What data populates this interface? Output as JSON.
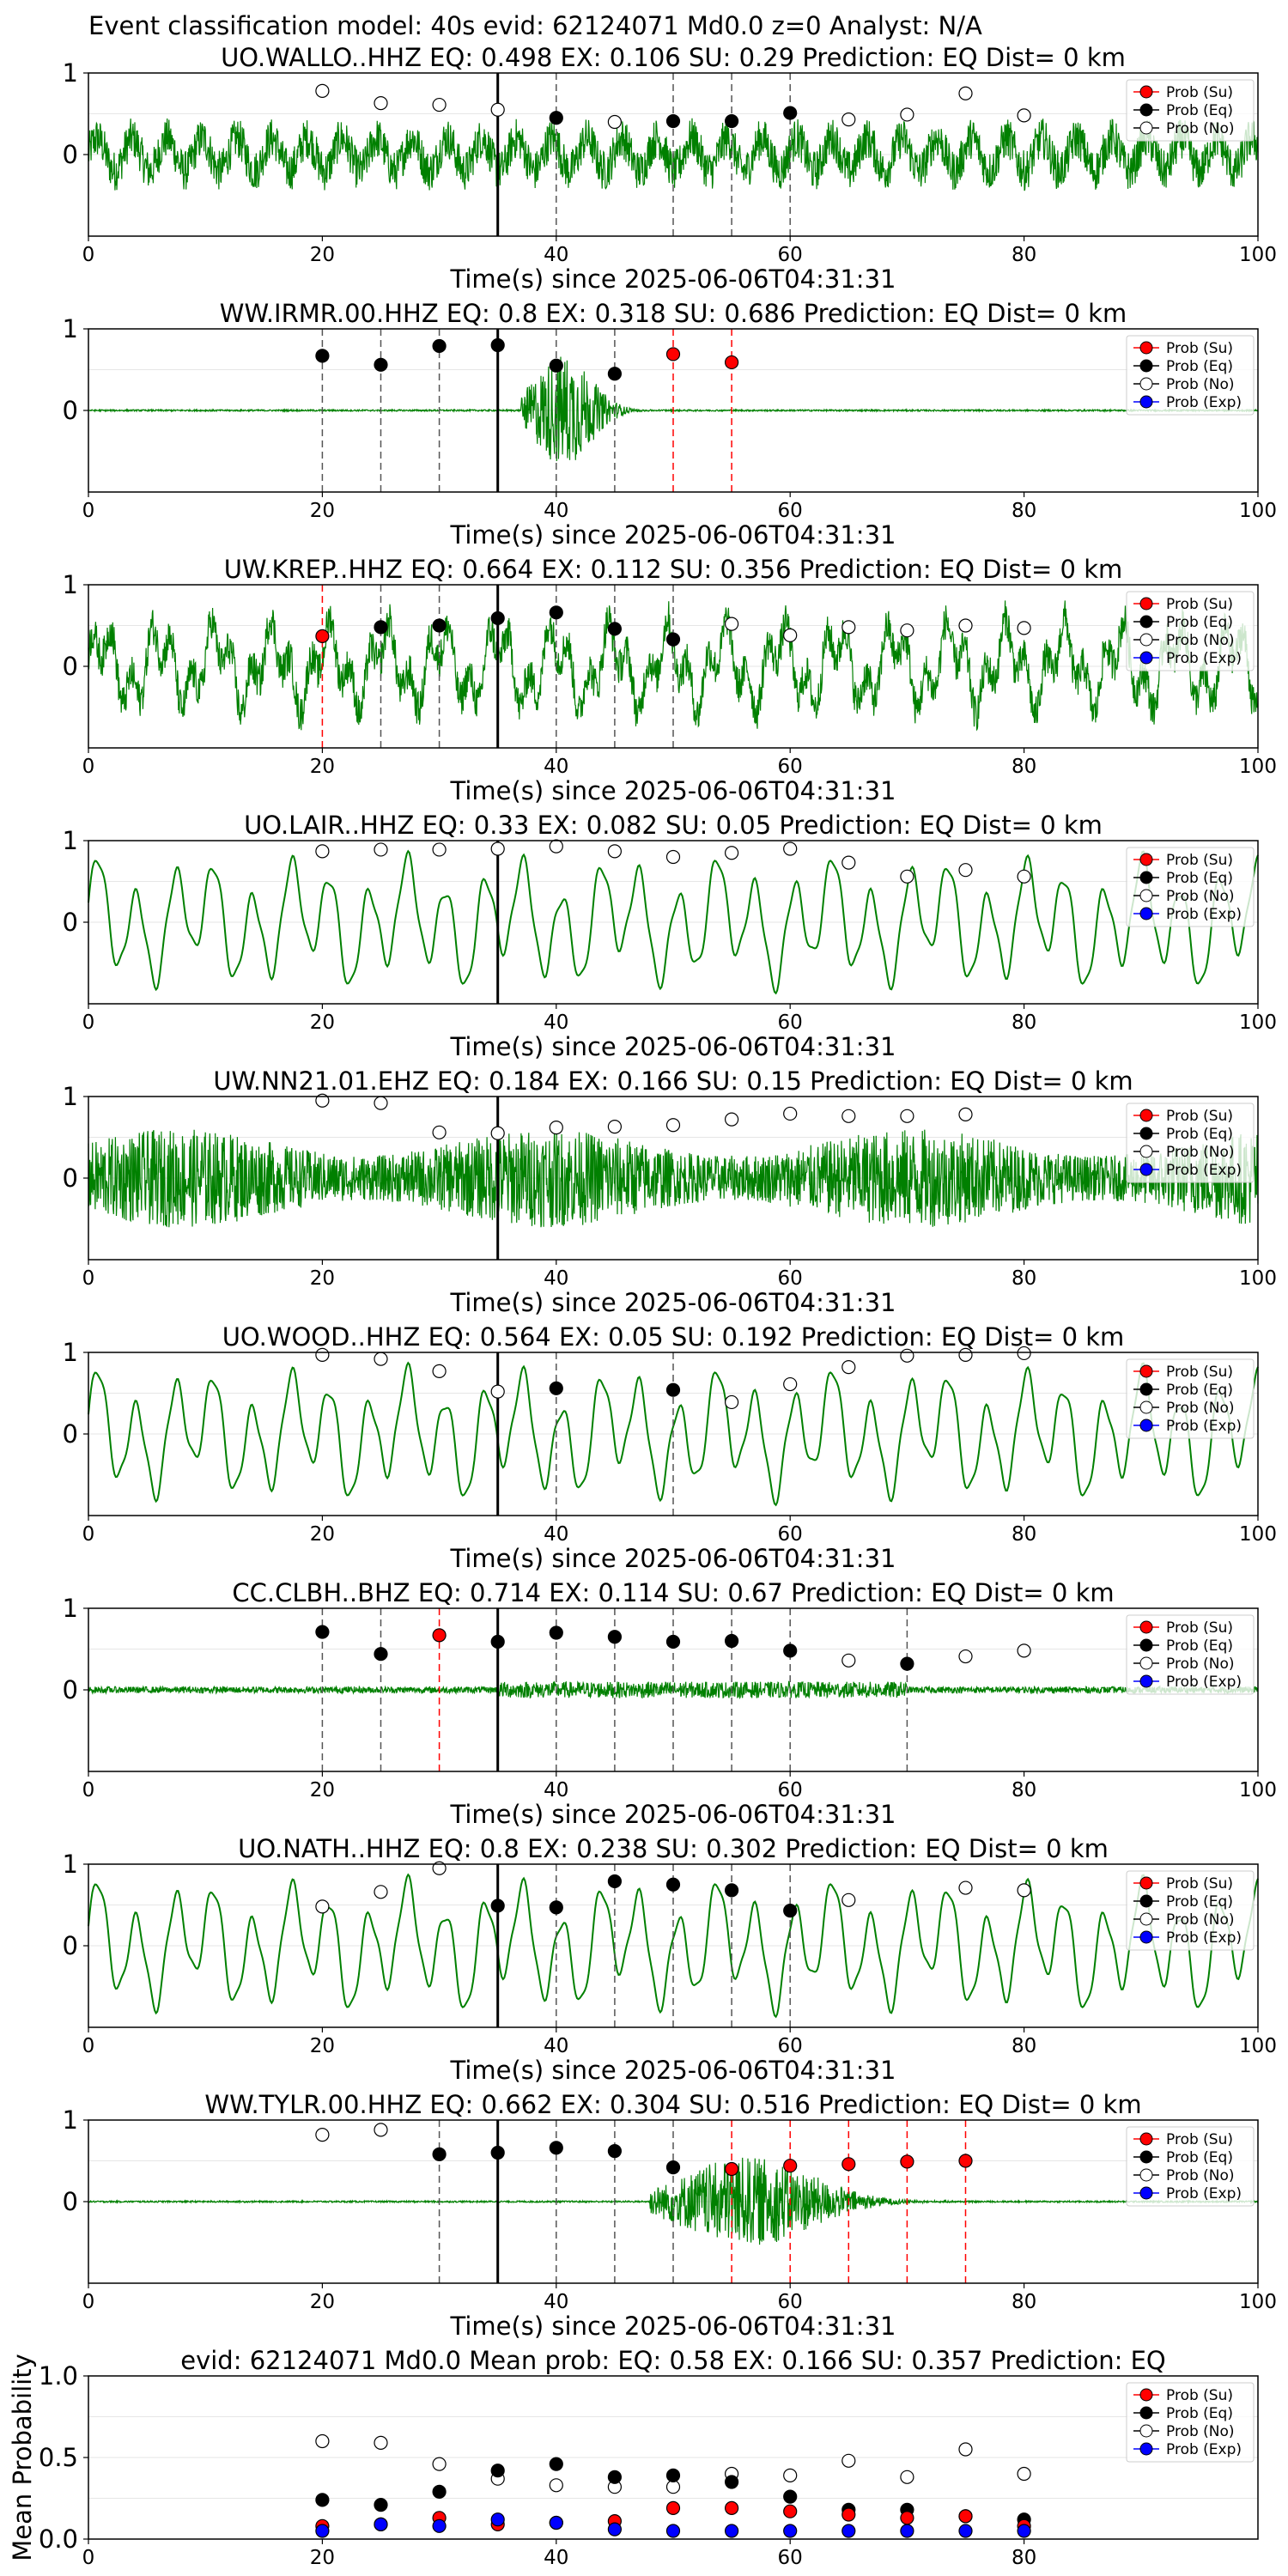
{
  "suptitle": "Event classification model: 40s evid: 62124071 Md0.0 z=0 Analyst: N/A",
  "xlabel": "Time(s) since 2025-06-06T04:31:31",
  "legend": [
    "Prob (Su)",
    "Prob (Eq)",
    "Prob (No)",
    "Prob (Exp)"
  ],
  "colors": {
    "trace": "#008000",
    "su": "#ff0000",
    "eq": "#000000",
    "no": "#ffffff",
    "exp": "#0000ff",
    "eq_line": "#555555",
    "su_line": "#ff0000"
  },
  "chart_data": [
    {
      "type": "line",
      "title": "UO.WALLO..HHZ   EQ: 0.498  EX: 0.106  SU: 0.29   Prediction: EQ    Dist= 0 km",
      "xlim": [
        0,
        100
      ],
      "xticks": [
        0,
        20,
        40,
        60,
        80,
        100
      ],
      "yticks": [
        0,
        1
      ],
      "ylim": [
        -1,
        1
      ],
      "origin_x": 35,
      "trace": "broadband",
      "legend": [
        "Prob (Su)",
        "Prob (Eq)",
        "Prob (No)"
      ],
      "points": [
        {
          "x": 20,
          "y": 0.78,
          "cls": "no"
        },
        {
          "x": 25,
          "y": 0.63,
          "cls": "no"
        },
        {
          "x": 30,
          "y": 0.61,
          "cls": "no"
        },
        {
          "x": 35,
          "y": 0.55,
          "cls": "no"
        },
        {
          "x": 40,
          "y": 0.45,
          "cls": "eq"
        },
        {
          "x": 45,
          "y": 0.4,
          "cls": "no"
        },
        {
          "x": 50,
          "y": 0.41,
          "cls": "eq"
        },
        {
          "x": 55,
          "y": 0.41,
          "cls": "eq"
        },
        {
          "x": 60,
          "y": 0.51,
          "cls": "eq"
        },
        {
          "x": 65,
          "y": 0.43,
          "cls": "no"
        },
        {
          "x": 70,
          "y": 0.49,
          "cls": "no"
        },
        {
          "x": 75,
          "y": 0.75,
          "cls": "no"
        },
        {
          "x": 80,
          "y": 0.48,
          "cls": "no"
        }
      ]
    },
    {
      "type": "line",
      "title": "WW.IRMR.00.HHZ   EQ: 0.8  EX: 0.318  SU: 0.686   Prediction: EQ    Dist= 0 km",
      "xlim": [
        0,
        100
      ],
      "xticks": [
        0,
        20,
        40,
        60,
        80,
        100
      ],
      "yticks": [
        0,
        1
      ],
      "ylim": [
        -1,
        1
      ],
      "origin_x": 35,
      "trace": "burst",
      "burst": [
        37,
        49,
        0.7
      ],
      "legend": [
        "Prob (Su)",
        "Prob (Eq)",
        "Prob (No)",
        "Prob (Exp)"
      ],
      "points": [
        {
          "x": 20,
          "y": 0.67,
          "cls": "eq"
        },
        {
          "x": 25,
          "y": 0.56,
          "cls": "eq"
        },
        {
          "x": 30,
          "y": 0.79,
          "cls": "eq"
        },
        {
          "x": 35,
          "y": 0.8,
          "cls": "eq"
        },
        {
          "x": 40,
          "y": 0.55,
          "cls": "eq"
        },
        {
          "x": 45,
          "y": 0.45,
          "cls": "eq"
        },
        {
          "x": 50,
          "y": 0.69,
          "cls": "su"
        },
        {
          "x": 55,
          "y": 0.59,
          "cls": "su"
        }
      ]
    },
    {
      "type": "line",
      "title": "UW.KREP..HHZ   EQ: 0.664  EX: 0.112  SU: 0.356   Prediction: EQ    Dist= 0 km",
      "xlim": [
        0,
        100
      ],
      "xticks": [
        0,
        20,
        40,
        60,
        80,
        100
      ],
      "yticks": [
        0,
        1
      ],
      "ylim": [
        -1,
        1
      ],
      "origin_x": 35,
      "trace": "noisy",
      "legend": [
        "Prob (Su)",
        "Prob (Eq)",
        "Prob (No)",
        "Prob (Exp)"
      ],
      "points": [
        {
          "x": 20,
          "y": 0.37,
          "cls": "su"
        },
        {
          "x": 25,
          "y": 0.48,
          "cls": "eq"
        },
        {
          "x": 30,
          "y": 0.5,
          "cls": "eq"
        },
        {
          "x": 35,
          "y": 0.59,
          "cls": "eq"
        },
        {
          "x": 40,
          "y": 0.66,
          "cls": "eq"
        },
        {
          "x": 45,
          "y": 0.46,
          "cls": "eq"
        },
        {
          "x": 50,
          "y": 0.33,
          "cls": "eq"
        },
        {
          "x": 55,
          "y": 0.52,
          "cls": "no"
        },
        {
          "x": 60,
          "y": 0.38,
          "cls": "no"
        },
        {
          "x": 65,
          "y": 0.48,
          "cls": "no"
        },
        {
          "x": 70,
          "y": 0.44,
          "cls": "no"
        },
        {
          "x": 75,
          "y": 0.5,
          "cls": "no"
        },
        {
          "x": 80,
          "y": 0.47,
          "cls": "no"
        }
      ]
    },
    {
      "type": "line",
      "title": "UO.LAIR..HHZ   EQ: 0.33  EX: 0.082  SU: 0.05   Prediction: EQ    Dist= 0 km",
      "xlim": [
        0,
        100
      ],
      "xticks": [
        0,
        20,
        40,
        60,
        80,
        100
      ],
      "yticks": [
        0,
        1
      ],
      "ylim": [
        -1,
        1
      ],
      "origin_x": 35,
      "trace": "smooth",
      "legend": [
        "Prob (Su)",
        "Prob (Eq)",
        "Prob (No)",
        "Prob (Exp)"
      ],
      "points": [
        {
          "x": 20,
          "y": 0.87,
          "cls": "no"
        },
        {
          "x": 25,
          "y": 0.89,
          "cls": "no"
        },
        {
          "x": 30,
          "y": 0.89,
          "cls": "no"
        },
        {
          "x": 35,
          "y": 0.9,
          "cls": "no"
        },
        {
          "x": 40,
          "y": 0.93,
          "cls": "no"
        },
        {
          "x": 45,
          "y": 0.87,
          "cls": "no"
        },
        {
          "x": 50,
          "y": 0.8,
          "cls": "no"
        },
        {
          "x": 55,
          "y": 0.85,
          "cls": "no"
        },
        {
          "x": 60,
          "y": 0.9,
          "cls": "no"
        },
        {
          "x": 65,
          "y": 0.73,
          "cls": "no"
        },
        {
          "x": 70,
          "y": 0.56,
          "cls": "no"
        },
        {
          "x": 75,
          "y": 0.64,
          "cls": "no"
        },
        {
          "x": 80,
          "y": 0.56,
          "cls": "no"
        }
      ]
    },
    {
      "type": "line",
      "title": "UW.NN21.01.EHZ   EQ: 0.184  EX: 0.166  SU: 0.15   Prediction: EQ    Dist= 0 km",
      "xlim": [
        0,
        100
      ],
      "xticks": [
        0,
        20,
        40,
        60,
        80,
        100
      ],
      "yticks": [
        0,
        1
      ],
      "ylim": [
        -1,
        1
      ],
      "origin_x": 35,
      "trace": "dense",
      "legend": [
        "Prob (Su)",
        "Prob (Eq)",
        "Prob (No)",
        "Prob (Exp)"
      ],
      "points": [
        {
          "x": 20,
          "y": 0.95,
          "cls": "no"
        },
        {
          "x": 25,
          "y": 0.92,
          "cls": "no"
        },
        {
          "x": 30,
          "y": 0.56,
          "cls": "no"
        },
        {
          "x": 35,
          "y": 0.55,
          "cls": "no"
        },
        {
          "x": 40,
          "y": 0.62,
          "cls": "no"
        },
        {
          "x": 45,
          "y": 0.63,
          "cls": "no"
        },
        {
          "x": 50,
          "y": 0.65,
          "cls": "no"
        },
        {
          "x": 55,
          "y": 0.72,
          "cls": "no"
        },
        {
          "x": 60,
          "y": 0.79,
          "cls": "no"
        },
        {
          "x": 65,
          "y": 0.76,
          "cls": "no"
        },
        {
          "x": 70,
          "y": 0.76,
          "cls": "no"
        },
        {
          "x": 75,
          "y": 0.78,
          "cls": "no"
        }
      ]
    },
    {
      "type": "line",
      "title": "UO.WOOD..HHZ   EQ: 0.564  EX: 0.05  SU: 0.192   Prediction: EQ    Dist= 0 km",
      "xlim": [
        0,
        100
      ],
      "xticks": [
        0,
        20,
        40,
        60,
        80,
        100
      ],
      "yticks": [
        0,
        1
      ],
      "ylim": [
        -1,
        1
      ],
      "origin_x": 35,
      "trace": "smooth",
      "legend": [
        "Prob (Su)",
        "Prob (Eq)",
        "Prob (No)",
        "Prob (Exp)"
      ],
      "points": [
        {
          "x": 20,
          "y": 0.97,
          "cls": "no"
        },
        {
          "x": 25,
          "y": 0.92,
          "cls": "no"
        },
        {
          "x": 30,
          "y": 0.77,
          "cls": "no"
        },
        {
          "x": 35,
          "y": 0.52,
          "cls": "no"
        },
        {
          "x": 40,
          "y": 0.56,
          "cls": "eq"
        },
        {
          "x": 50,
          "y": 0.54,
          "cls": "eq"
        },
        {
          "x": 55,
          "y": 0.39,
          "cls": "no"
        },
        {
          "x": 60,
          "y": 0.61,
          "cls": "no"
        },
        {
          "x": 65,
          "y": 0.82,
          "cls": "no"
        },
        {
          "x": 70,
          "y": 0.96,
          "cls": "no"
        },
        {
          "x": 75,
          "y": 0.97,
          "cls": "no"
        },
        {
          "x": 80,
          "y": 0.99,
          "cls": "no"
        }
      ]
    },
    {
      "type": "line",
      "title": "CC.CLBH..BHZ   EQ: 0.714  EX: 0.114  SU: 0.67   Prediction: EQ    Dist= 0 km",
      "xlim": [
        0,
        100
      ],
      "xticks": [
        0,
        20,
        40,
        60,
        80,
        100
      ],
      "yticks": [
        0,
        1
      ],
      "ylim": [
        -1,
        1
      ],
      "origin_x": 35,
      "trace": "quiet",
      "legend": [
        "Prob (Su)",
        "Prob (Eq)",
        "Prob (No)",
        "Prob (Exp)"
      ],
      "points": [
        {
          "x": 20,
          "y": 0.71,
          "cls": "eq"
        },
        {
          "x": 25,
          "y": 0.44,
          "cls": "eq"
        },
        {
          "x": 30,
          "y": 0.67,
          "cls": "su"
        },
        {
          "x": 35,
          "y": 0.59,
          "cls": "eq"
        },
        {
          "x": 40,
          "y": 0.7,
          "cls": "eq"
        },
        {
          "x": 45,
          "y": 0.65,
          "cls": "eq"
        },
        {
          "x": 50,
          "y": 0.59,
          "cls": "eq"
        },
        {
          "x": 55,
          "y": 0.6,
          "cls": "eq"
        },
        {
          "x": 60,
          "y": 0.48,
          "cls": "eq"
        },
        {
          "x": 65,
          "y": 0.36,
          "cls": "no"
        },
        {
          "x": 70,
          "y": 0.32,
          "cls": "eq"
        },
        {
          "x": 75,
          "y": 0.41,
          "cls": "no"
        },
        {
          "x": 80,
          "y": 0.48,
          "cls": "no"
        }
      ]
    },
    {
      "type": "line",
      "title": "UO.NATH..HHZ   EQ: 0.8  EX: 0.238  SU: 0.302   Prediction: EQ    Dist= 0 km",
      "xlim": [
        0,
        100
      ],
      "xticks": [
        0,
        20,
        40,
        60,
        80,
        100
      ],
      "yticks": [
        0,
        1
      ],
      "ylim": [
        -1,
        1
      ],
      "origin_x": 35,
      "trace": "smooth",
      "legend": [
        "Prob (Su)",
        "Prob (Eq)",
        "Prob (No)",
        "Prob (Exp)"
      ],
      "points": [
        {
          "x": 20,
          "y": 0.48,
          "cls": "no"
        },
        {
          "x": 25,
          "y": 0.66,
          "cls": "no"
        },
        {
          "x": 30,
          "y": 0.95,
          "cls": "no"
        },
        {
          "x": 35,
          "y": 0.49,
          "cls": "eq"
        },
        {
          "x": 40,
          "y": 0.47,
          "cls": "eq"
        },
        {
          "x": 45,
          "y": 0.79,
          "cls": "eq"
        },
        {
          "x": 50,
          "y": 0.75,
          "cls": "eq"
        },
        {
          "x": 55,
          "y": 0.68,
          "cls": "eq"
        },
        {
          "x": 60,
          "y": 0.43,
          "cls": "eq"
        },
        {
          "x": 65,
          "y": 0.56,
          "cls": "no"
        },
        {
          "x": 75,
          "y": 0.71,
          "cls": "no"
        },
        {
          "x": 80,
          "y": 0.68,
          "cls": "no"
        }
      ]
    },
    {
      "type": "line",
      "title": "WW.TYLR.00.HHZ   EQ: 0.662  EX: 0.304  SU: 0.516   Prediction: EQ    Dist= 0 km",
      "xlim": [
        0,
        100
      ],
      "xticks": [
        0,
        20,
        40,
        60,
        80,
        100
      ],
      "yticks": [
        0,
        1
      ],
      "ylim": [
        -1,
        1
      ],
      "origin_x": 35,
      "trace": "burst",
      "burst": [
        48,
        76,
        0.55
      ],
      "legend": [
        "Prob (Su)",
        "Prob (Eq)",
        "Prob (No)",
        "Prob (Exp)"
      ],
      "points": [
        {
          "x": 20,
          "y": 0.82,
          "cls": "no"
        },
        {
          "x": 25,
          "y": 0.88,
          "cls": "no"
        },
        {
          "x": 30,
          "y": 0.58,
          "cls": "eq"
        },
        {
          "x": 35,
          "y": 0.6,
          "cls": "eq"
        },
        {
          "x": 40,
          "y": 0.66,
          "cls": "eq"
        },
        {
          "x": 45,
          "y": 0.62,
          "cls": "eq"
        },
        {
          "x": 50,
          "y": 0.42,
          "cls": "eq"
        },
        {
          "x": 55,
          "y": 0.4,
          "cls": "su"
        },
        {
          "x": 60,
          "y": 0.44,
          "cls": "su"
        },
        {
          "x": 65,
          "y": 0.46,
          "cls": "su"
        },
        {
          "x": 70,
          "y": 0.49,
          "cls": "su"
        },
        {
          "x": 75,
          "y": 0.5,
          "cls": "su"
        }
      ]
    },
    {
      "type": "scatter",
      "title": "evid: 62124071   Md0.0   Mean prob:   EQ: 0.58  EX: 0.166  SU: 0.357   Prediction: EQ",
      "ylabel": "Mean Probability",
      "xlim": [
        0,
        100
      ],
      "xticks": [
        0,
        20,
        40,
        60,
        80
      ],
      "ylim": [
        0,
        1
      ],
      "yticks": [
        "0.0",
        "0.5",
        "1.0"
      ],
      "legend": [
        "Prob (Su)",
        "Prob (Eq)",
        "Prob (No)",
        "Prob (Exp)"
      ],
      "x": [
        20,
        25,
        30,
        35,
        40,
        45,
        50,
        55,
        60,
        65,
        70,
        75,
        80
      ],
      "series": [
        {
          "name": "Prob (No)",
          "cls": "no",
          "values": [
            0.6,
            0.59,
            0.46,
            0.37,
            0.33,
            0.32,
            0.32,
            0.4,
            0.39,
            0.48,
            0.38,
            0.55,
            0.4
          ]
        },
        {
          "name": "Prob (Eq)",
          "cls": "eq",
          "values": [
            0.24,
            0.21,
            0.29,
            0.42,
            0.46,
            0.38,
            0.39,
            0.35,
            0.26,
            0.18,
            0.18,
            0.14,
            0.12
          ]
        },
        {
          "name": "Prob (Su)",
          "cls": "su",
          "values": [
            0.08,
            0.09,
            0.13,
            0.09,
            0.1,
            0.11,
            0.19,
            0.19,
            0.17,
            0.15,
            0.13,
            0.14,
            0.08
          ]
        },
        {
          "name": "Prob (Exp)",
          "cls": "exp",
          "values": [
            0.05,
            0.09,
            0.08,
            0.12,
            0.1,
            0.06,
            0.05,
            0.05,
            0.05,
            0.05,
            0.05,
            0.05,
            0.05
          ]
        }
      ]
    }
  ]
}
